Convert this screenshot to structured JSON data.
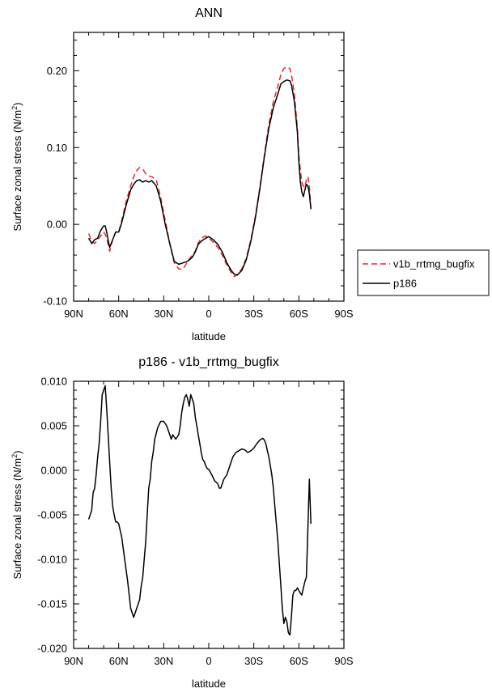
{
  "chart_data": [
    {
      "type": "line",
      "title": "ANN",
      "xlabel": "latitude",
      "ylabel": "Surface zonal stress (N/m",
      "ylabel_sup": "2",
      "ylabel_close": ")",
      "xlim": [
        90,
        -90
      ],
      "ylim": [
        -0.1,
        0.25
      ],
      "x_ticks": [
        90,
        60,
        30,
        0,
        -30,
        -60,
        -90
      ],
      "x_tick_labels": [
        "90N",
        "60N",
        "30N",
        "0",
        "30S",
        "60S",
        "90S"
      ],
      "y_ticks": [
        -0.1,
        0.0,
        0.1,
        0.2
      ],
      "y_tick_labels": [
        "-0.10",
        "0.00",
        "0.10",
        "0.20"
      ],
      "legend": "right",
      "series": [
        {
          "name": "v1b_rrtmg_bugfix",
          "color": "#e8262c",
          "dash": "dashed",
          "x": [
            80,
            78,
            76,
            74,
            72,
            70,
            69,
            68,
            66,
            64,
            62,
            60,
            58,
            55,
            52,
            50,
            48,
            46,
            44,
            42,
            40,
            38,
            35,
            32,
            29,
            26,
            23,
            20,
            17,
            14,
            11,
            9,
            7,
            5,
            2,
            0,
            -3,
            -6,
            -9,
            -12,
            -15,
            -17,
            -19,
            -22,
            -25,
            -28,
            -31,
            -34,
            -37,
            -40,
            -43,
            -46,
            -48,
            -50,
            -52,
            -54,
            -55,
            -57,
            -59,
            -60,
            -61,
            -62,
            -63,
            -64,
            -65,
            -66,
            -67,
            -68
          ],
          "y": [
            -0.012,
            -0.022,
            -0.025,
            -0.02,
            -0.015,
            -0.01,
            -0.013,
            -0.018,
            -0.035,
            -0.02,
            -0.01,
            -0.01,
            0.005,
            0.03,
            0.05,
            0.062,
            0.07,
            0.074,
            0.072,
            0.066,
            0.063,
            0.062,
            0.058,
            0.035,
            0.005,
            -0.025,
            -0.05,
            -0.058,
            -0.058,
            -0.048,
            -0.04,
            -0.035,
            -0.024,
            -0.018,
            -0.015,
            -0.018,
            -0.023,
            -0.03,
            -0.04,
            -0.053,
            -0.063,
            -0.068,
            -0.066,
            -0.058,
            -0.044,
            -0.02,
            0.01,
            0.048,
            0.09,
            0.13,
            0.16,
            0.18,
            0.195,
            0.203,
            0.205,
            0.203,
            0.196,
            0.17,
            0.125,
            0.09,
            0.07,
            0.055,
            0.05,
            0.048,
            0.058,
            0.062,
            0.05,
            0.02
          ]
        },
        {
          "name": "p186",
          "color": "#000000",
          "dash": "solid",
          "x": [
            80,
            78,
            76,
            74,
            72,
            70,
            69,
            68,
            66,
            64,
            62,
            60,
            58,
            55,
            52,
            50,
            48,
            46,
            44,
            42,
            40,
            38,
            35,
            32,
            29,
            26,
            23,
            20,
            17,
            14,
            11,
            9,
            7,
            5,
            2,
            0,
            -3,
            -6,
            -9,
            -12,
            -15,
            -17,
            -19,
            -22,
            -25,
            -28,
            -31,
            -34,
            -37,
            -40,
            -43,
            -46,
            -48,
            -50,
            -52,
            -54,
            -55,
            -57,
            -59,
            -60,
            -61,
            -62,
            -63,
            -64,
            -65,
            -66,
            -67,
            -68
          ],
          "y": [
            -0.018,
            -0.025,
            -0.02,
            -0.018,
            -0.008,
            -0.002,
            -0.002,
            -0.01,
            -0.03,
            -0.02,
            -0.01,
            -0.01,
            0.002,
            0.025,
            0.045,
            0.052,
            0.057,
            0.058,
            0.055,
            0.057,
            0.055,
            0.057,
            0.05,
            0.03,
            0.0,
            -0.025,
            -0.048,
            -0.052,
            -0.05,
            -0.048,
            -0.043,
            -0.036,
            -0.026,
            -0.022,
            -0.018,
            -0.016,
            -0.02,
            -0.026,
            -0.036,
            -0.05,
            -0.06,
            -0.065,
            -0.066,
            -0.06,
            -0.046,
            -0.022,
            0.008,
            0.046,
            0.088,
            0.125,
            0.152,
            0.17,
            0.183,
            0.186,
            0.188,
            0.187,
            0.182,
            0.16,
            0.12,
            0.082,
            0.055,
            0.042,
            0.036,
            0.045,
            0.052,
            0.05,
            0.04,
            0.02
          ]
        }
      ]
    },
    {
      "type": "line",
      "title": "p186 - v1b_rrtmg_bugfix",
      "xlabel": "latitude",
      "ylabel": "Surface zonal stress (N/m",
      "ylabel_sup": "2",
      "ylabel_close": ")",
      "xlim": [
        90,
        -90
      ],
      "ylim": [
        -0.02,
        0.01
      ],
      "x_ticks": [
        90,
        60,
        30,
        0,
        -30,
        -60,
        -90
      ],
      "x_tick_labels": [
        "90N",
        "60N",
        "30N",
        "0",
        "30S",
        "60S",
        "90S"
      ],
      "y_ticks": [
        -0.02,
        -0.015,
        -0.01,
        -0.005,
        0.0,
        0.005,
        0.01
      ],
      "y_tick_labels": [
        "-0.020",
        "-0.015",
        "-0.010",
        "-0.005",
        "0.000",
        "0.005",
        "0.010"
      ],
      "series": [
        {
          "color": "#000000",
          "dash": "solid",
          "x": [
            80,
            78,
            77,
            76,
            75,
            74,
            73,
            72,
            71,
            70,
            69,
            68,
            67,
            66,
            65,
            64,
            63,
            62,
            61,
            60,
            58,
            56,
            54,
            52,
            50,
            49,
            48,
            47,
            46,
            45,
            44,
            43,
            42,
            41,
            40,
            39,
            38,
            37,
            36,
            34,
            32,
            30,
            28,
            26,
            25,
            24,
            22,
            20,
            19,
            18,
            17,
            16,
            15,
            14,
            13,
            12,
            11,
            10,
            9,
            8,
            7,
            6,
            5,
            4,
            3,
            2,
            1,
            0,
            -2,
            -4,
            -6,
            -7,
            -8,
            -9,
            -10,
            -12,
            -14,
            -16,
            -18,
            -20,
            -22,
            -24,
            -26,
            -28,
            -30,
            -32,
            -34,
            -36,
            -37,
            -38,
            -39,
            -40,
            -41,
            -42,
            -43,
            -44,
            -45,
            -46,
            -47,
            -48,
            -49,
            -50,
            -51,
            -52,
            -53,
            -54,
            -55,
            -56,
            -57,
            -58,
            -59,
            -60,
            -61,
            -62,
            -63,
            -64,
            -65,
            -66,
            -67,
            -68
          ],
          "y": [
            -0.0055,
            -0.0045,
            -0.0025,
            -0.002,
            -0.0005,
            0.0015,
            0.003,
            0.0055,
            0.0085,
            0.009,
            0.0095,
            0.007,
            0.004,
            0.001,
            -0.002,
            -0.004,
            -0.005,
            -0.0058,
            -0.0058,
            -0.006,
            -0.0075,
            -0.01,
            -0.0125,
            -0.0155,
            -0.0165,
            -0.016,
            -0.0155,
            -0.015,
            -0.0145,
            -0.013,
            -0.012,
            -0.01,
            -0.008,
            -0.005,
            -0.002,
            -0.001,
            0.001,
            0.002,
            0.0035,
            0.0048,
            0.0055,
            0.0055,
            0.005,
            0.004,
            0.0035,
            0.004,
            0.0035,
            0.004,
            0.005,
            0.0065,
            0.0075,
            0.0082,
            0.0085,
            0.008,
            0.0072,
            0.0085,
            0.008,
            0.0075,
            0.006,
            0.005,
            0.004,
            0.003,
            0.002,
            0.0012,
            0.001,
            0.0005,
            0.0002,
            0.0001,
            -0.0005,
            -0.0012,
            -0.0015,
            -0.002,
            -0.002,
            -0.0015,
            -0.001,
            -0.0005,
            0.0005,
            0.0015,
            0.002,
            0.0022,
            0.0024,
            0.0023,
            0.002,
            0.0022,
            0.0025,
            0.003,
            0.0034,
            0.0036,
            0.0034,
            0.003,
            0.0022,
            0.0015,
            0.0005,
            -0.0005,
            -0.002,
            -0.004,
            -0.006,
            -0.008,
            -0.0105,
            -0.013,
            -0.0155,
            -0.0172,
            -0.0165,
            -0.017,
            -0.0182,
            -0.0185,
            -0.0165,
            -0.014,
            -0.0135,
            -0.0135,
            -0.0132,
            -0.0135,
            -0.0138,
            -0.014,
            -0.0132,
            -0.0125,
            -0.012,
            -0.0065,
            -0.001,
            -0.006
          ]
        }
      ]
    }
  ]
}
